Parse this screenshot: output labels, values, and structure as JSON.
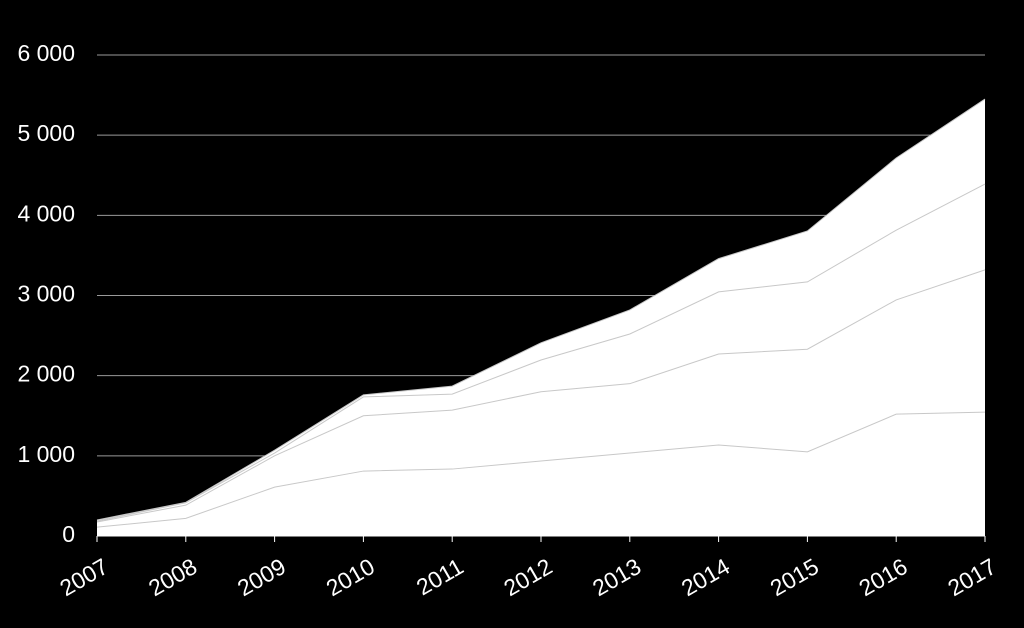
{
  "chart_data": {
    "type": "stacked_area",
    "categories": [
      "2007",
      "2008",
      "2009",
      "2010",
      "2011",
      "2012",
      "2013",
      "2014",
      "2015",
      "2016",
      "2017"
    ],
    "series": [
      {
        "color": "#ffffff",
        "values": [
          110,
          220,
          610,
          810,
          835,
          935,
          1035,
          1135,
          1050,
          1520,
          1545
        ]
      },
      {
        "color": "#ffffff",
        "values": [
          65,
          165,
          390,
          690,
          735,
          865,
          865,
          1135,
          1280,
          1425,
          1775
        ]
      },
      {
        "color": "#ffffff",
        "values": [
          10,
          30,
          35,
          235,
          200,
          395,
          620,
          775,
          840,
          870,
          1070
        ]
      },
      {
        "color": "#ffffff",
        "values": [
          15,
          5,
          35,
          25,
          100,
          215,
          300,
          415,
          635,
          900,
          1060
        ]
      }
    ],
    "ylim": [
      0,
      6000
    ],
    "yticks": [
      0,
      {
        "value": 1000,
        "label": "1 000"
      },
      {
        "value": 2000,
        "label": "2 000"
      },
      {
        "value": 3000,
        "label": "3 000"
      },
      {
        "value": 4000,
        "label": "4 000"
      },
      {
        "value": 5000,
        "label": "5 000"
      },
      {
        "value": 6000,
        "label": "6 000"
      }
    ],
    "grid": true
  }
}
